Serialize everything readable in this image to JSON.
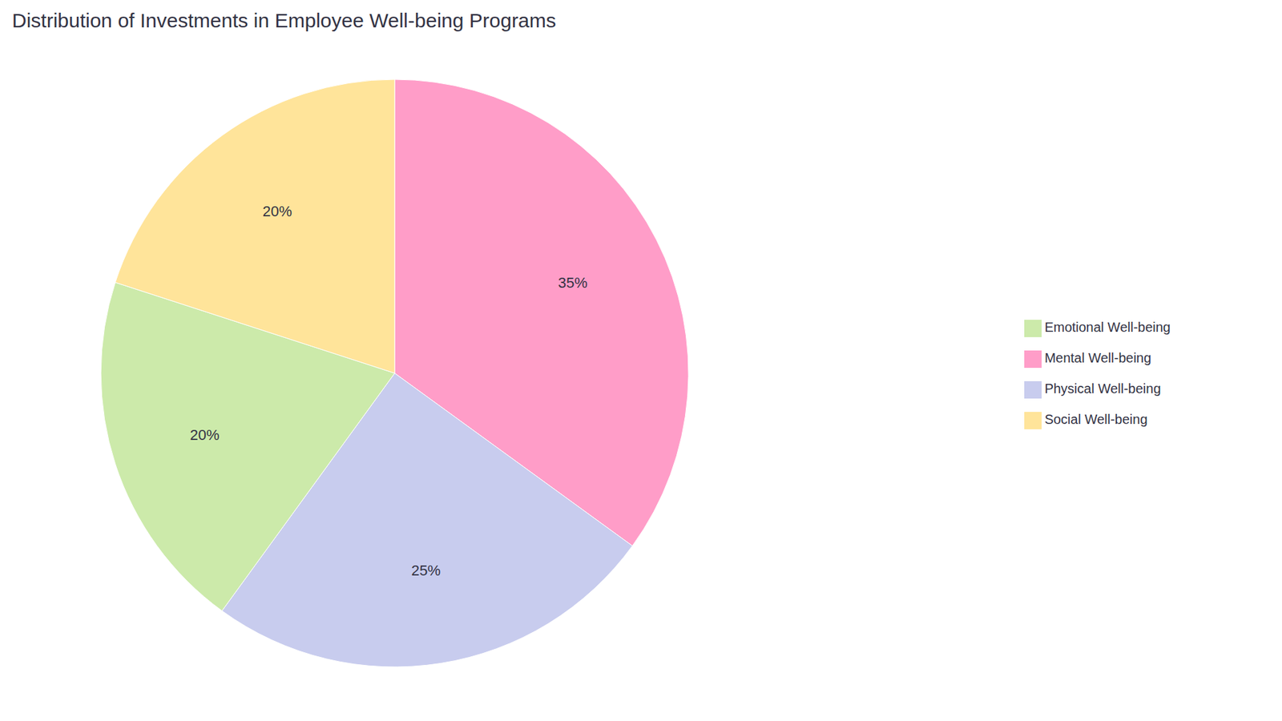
{
  "chart_data": {
    "type": "pie",
    "title": "Distribution of Investments in Employee Well-being Programs",
    "categories": [
      "Mental Well-being",
      "Physical Well-being",
      "Emotional Well-being",
      "Social Well-being"
    ],
    "values": [
      35,
      25,
      20,
      20
    ],
    "value_labels": [
      "35%",
      "25%",
      "20%",
      "20%"
    ],
    "colors": [
      "#FF9DC8",
      "#C8CCEE",
      "#CCEAAA",
      "#FFE49A"
    ],
    "data_labels": true,
    "legend": "right"
  }
}
